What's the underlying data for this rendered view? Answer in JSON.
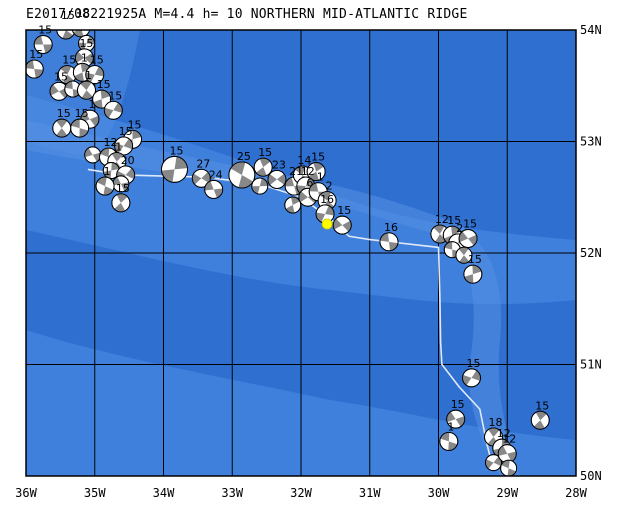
{
  "title": "E2017/08221925A M=4.4 h= 10 NORTHERN MID-ATLANTIC RIDGE",
  "map": {
    "lon_range": [
      -36,
      -28
    ],
    "lat_range": [
      50,
      54
    ],
    "lon_ticks": [
      {
        "value": -36,
        "label": "36W"
      },
      {
        "value": -35,
        "label": "35W"
      },
      {
        "value": -34,
        "label": "34W"
      },
      {
        "value": -33,
        "label": "33W"
      },
      {
        "value": -32,
        "label": "32W"
      },
      {
        "value": -31,
        "label": "31W"
      },
      {
        "value": -30,
        "label": "30W"
      },
      {
        "value": -29,
        "label": "29W"
      },
      {
        "value": -28,
        "label": "28W"
      }
    ],
    "lat_ticks": [
      {
        "value": 54,
        "label": "54N"
      },
      {
        "value": 53,
        "label": "53N"
      },
      {
        "value": 52,
        "label": "52N"
      },
      {
        "value": 51,
        "label": "51N"
      },
      {
        "value": 50,
        "label": "50N"
      }
    ],
    "colors": {
      "ocean_deep": "#2f6fd0",
      "ocean_mid": "#3e80dc",
      "ridge_shallow": "#5590e4",
      "grid": "#000000",
      "plate_boundary": "#dfe8f8",
      "mechanism_fill": "#888888",
      "epicenter": "#ffff00"
    },
    "plate_boundary": [
      [
        -35.1,
        52.75
      ],
      [
        -34.6,
        52.7
      ],
      [
        -33.4,
        52.68
      ],
      [
        -32.6,
        52.62
      ],
      [
        -32.0,
        52.5
      ],
      [
        -31.6,
        52.32
      ],
      [
        -31.3,
        52.15
      ],
      [
        -31.0,
        52.12
      ],
      [
        -30.0,
        52.05
      ],
      [
        -29.98,
        51.6
      ],
      [
        -29.97,
        51.2
      ],
      [
        -29.95,
        51.0
      ],
      [
        -29.7,
        50.8
      ],
      [
        -29.4,
        50.6
      ],
      [
        -29.3,
        50.3
      ],
      [
        -29.2,
        50.05
      ]
    ],
    "epicenter": {
      "lon": -31.62,
      "lat": 52.26
    },
    "events": [
      {
        "lon": -35.75,
        "lat": 53.87,
        "label": "15"
      },
      {
        "lon": -35.42,
        "lat": 54.0,
        "label": "15"
      },
      {
        "lon": -35.2,
        "lat": 54.02,
        "label": "18"
      },
      {
        "lon": -35.12,
        "lat": 53.88,
        "label": ""
      },
      {
        "lon": -35.15,
        "lat": 53.75,
        "label": "15"
      },
      {
        "lon": -35.88,
        "lat": 53.65,
        "label": "15"
      },
      {
        "lon": -35.4,
        "lat": 53.6,
        "label": "15"
      },
      {
        "lon": -35.18,
        "lat": 53.62,
        "label": "1"
      },
      {
        "lon": -35.0,
        "lat": 53.6,
        "label": "15"
      },
      {
        "lon": -35.52,
        "lat": 53.45,
        "label": "15"
      },
      {
        "lon": -35.32,
        "lat": 53.47,
        "label": ""
      },
      {
        "lon": -35.12,
        "lat": 53.46,
        "label": "1"
      },
      {
        "lon": -34.9,
        "lat": 53.38,
        "label": "15"
      },
      {
        "lon": -34.73,
        "lat": 53.28,
        "label": "15"
      },
      {
        "lon": -35.07,
        "lat": 53.2,
        "label": "1"
      },
      {
        "lon": -35.22,
        "lat": 53.12,
        "label": "15"
      },
      {
        "lon": -35.48,
        "lat": 53.12,
        "label": "15"
      },
      {
        "lon": -34.45,
        "lat": 53.02,
        "label": "15"
      },
      {
        "lon": -34.58,
        "lat": 52.96,
        "label": "15"
      },
      {
        "lon": -35.03,
        "lat": 52.88,
        "label": ""
      },
      {
        "lon": -34.8,
        "lat": 52.86,
        "label": "12"
      },
      {
        "lon": -34.68,
        "lat": 52.82,
        "label": "1"
      },
      {
        "lon": -34.76,
        "lat": 52.74,
        "label": ""
      },
      {
        "lon": -34.55,
        "lat": 52.7,
        "label": "20"
      },
      {
        "lon": -34.62,
        "lat": 52.62,
        "label": ""
      },
      {
        "lon": -34.85,
        "lat": 52.6,
        "label": "1"
      },
      {
        "lon": -34.62,
        "lat": 52.45,
        "label": "15"
      },
      {
        "lon": -33.84,
        "lat": 52.75,
        "label": "15"
      },
      {
        "lon": -33.45,
        "lat": 52.67,
        "label": "27"
      },
      {
        "lon": -33.27,
        "lat": 52.57,
        "label": "24"
      },
      {
        "lon": -32.86,
        "lat": 52.7,
        "label": "25"
      },
      {
        "lon": -32.55,
        "lat": 52.77,
        "label": "15"
      },
      {
        "lon": -32.6,
        "lat": 52.6,
        "label": ""
      },
      {
        "lon": -32.35,
        "lat": 52.66,
        "label": "23"
      },
      {
        "lon": -32.1,
        "lat": 52.6,
        "label": "21"
      },
      {
        "lon": -31.98,
        "lat": 52.7,
        "label": "14"
      },
      {
        "lon": -31.78,
        "lat": 52.73,
        "label": "15"
      },
      {
        "lon": -31.93,
        "lat": 52.6,
        "label": "12"
      },
      {
        "lon": -31.9,
        "lat": 52.5,
        "label": "6"
      },
      {
        "lon": -31.75,
        "lat": 52.55,
        "label": "1"
      },
      {
        "lon": -31.62,
        "lat": 52.47,
        "label": "2"
      },
      {
        "lon": -32.12,
        "lat": 52.43,
        "label": ""
      },
      {
        "lon": -31.65,
        "lat": 52.35,
        "label": "16"
      },
      {
        "lon": -31.4,
        "lat": 52.25,
        "label": "15"
      },
      {
        "lon": -30.72,
        "lat": 52.1,
        "label": "16"
      },
      {
        "lon": -29.98,
        "lat": 52.17,
        "label": "12"
      },
      {
        "lon": -29.8,
        "lat": 52.16,
        "label": "15"
      },
      {
        "lon": -29.72,
        "lat": 52.09,
        "label": "2"
      },
      {
        "lon": -29.57,
        "lat": 52.13,
        "label": "15"
      },
      {
        "lon": -29.8,
        "lat": 52.03,
        "label": ""
      },
      {
        "lon": -29.63,
        "lat": 51.98,
        "label": ""
      },
      {
        "lon": -29.5,
        "lat": 51.81,
        "label": "15"
      },
      {
        "lon": -29.52,
        "lat": 50.88,
        "label": "15"
      },
      {
        "lon": -29.75,
        "lat": 50.51,
        "label": "15"
      },
      {
        "lon": -29.85,
        "lat": 50.31,
        "label": "1"
      },
      {
        "lon": -29.2,
        "lat": 50.35,
        "label": "18"
      },
      {
        "lon": -29.08,
        "lat": 50.25,
        "label": "12"
      },
      {
        "lon": -29.2,
        "lat": 50.12,
        "label": ""
      },
      {
        "lon": -29.0,
        "lat": 50.2,
        "label": "12"
      },
      {
        "lon": -28.98,
        "lat": 50.07,
        "label": ""
      },
      {
        "lon": -28.52,
        "lat": 50.5,
        "label": "15"
      }
    ]
  }
}
